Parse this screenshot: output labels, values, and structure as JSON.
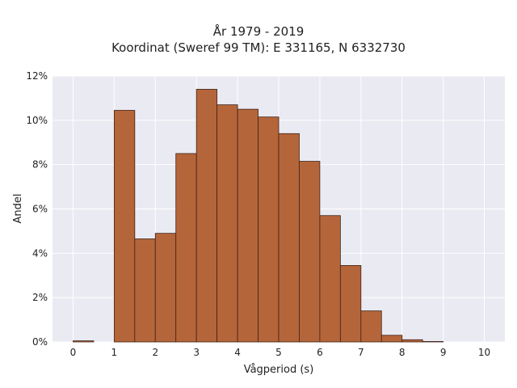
{
  "chart_data": {
    "type": "bar",
    "title_lines": [
      "År 1979 - 2019",
      "Koordinat (Sweref 99 TM): E 331165, N 6332730"
    ],
    "xlabel": "Vågperiod (s)",
    "ylabel": "Andel",
    "xlim": [
      -0.5,
      10.5
    ],
    "ylim": [
      0,
      12
    ],
    "x_ticks": [
      0,
      1,
      2,
      3,
      4,
      5,
      6,
      7,
      8,
      9,
      10
    ],
    "y_ticks": [
      0,
      2,
      4,
      6,
      8,
      10,
      12
    ],
    "y_tick_labels": [
      "0%",
      "2%",
      "4%",
      "6%",
      "8%",
      "10%",
      "12%"
    ],
    "bin_width": 0.5,
    "bins": [
      {
        "x0": 0.0,
        "value": 0.05
      },
      {
        "x0": 1.0,
        "value": 10.45
      },
      {
        "x0": 1.5,
        "value": 4.65
      },
      {
        "x0": 2.0,
        "value": 4.9
      },
      {
        "x0": 2.5,
        "value": 8.5
      },
      {
        "x0": 3.0,
        "value": 11.4
      },
      {
        "x0": 3.5,
        "value": 10.7
      },
      {
        "x0": 4.0,
        "value": 10.5
      },
      {
        "x0": 4.5,
        "value": 10.15
      },
      {
        "x0": 5.0,
        "value": 9.4
      },
      {
        "x0": 5.5,
        "value": 8.15
      },
      {
        "x0": 6.0,
        "value": 5.7
      },
      {
        "x0": 6.5,
        "value": 3.45
      },
      {
        "x0": 7.0,
        "value": 1.4
      },
      {
        "x0": 7.5,
        "value": 0.3
      },
      {
        "x0": 8.0,
        "value": 0.1
      },
      {
        "x0": 8.5,
        "value": 0.02
      }
    ],
    "grid": true,
    "colors": {
      "bar_fill": "#b5653a",
      "bar_stroke": "#3d2418",
      "plot_bg": "#eaeaf2",
      "grid": "#ffffff"
    }
  }
}
